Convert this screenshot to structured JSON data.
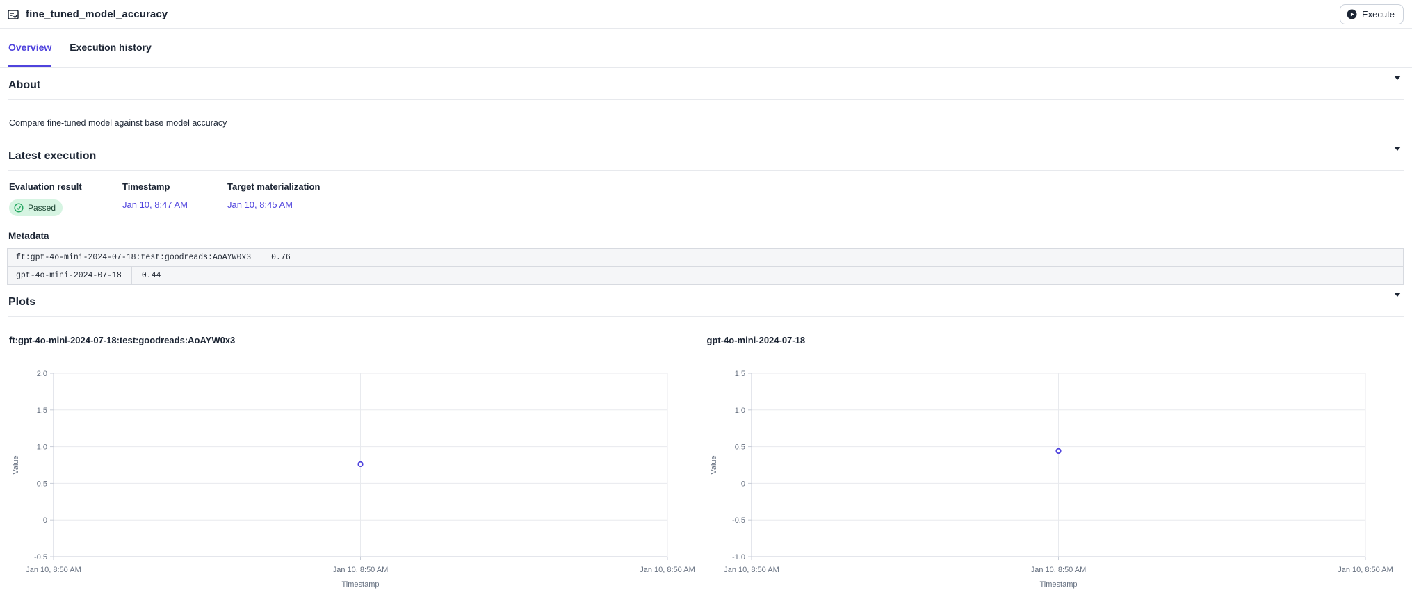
{
  "header": {
    "title": "fine_tuned_model_accuracy",
    "execute_label": "Execute"
  },
  "tabs": [
    {
      "label": "Overview",
      "active": true
    },
    {
      "label": "Execution history",
      "active": false
    }
  ],
  "sections": {
    "about": {
      "title": "About",
      "description": "Compare fine-tuned model against base model accuracy"
    },
    "latest_execution": {
      "title": "Latest execution",
      "columns": [
        "Evaluation result",
        "Timestamp",
        "Target materialization"
      ],
      "evaluation_result": "Passed",
      "timestamp": "Jan 10, 8:47 AM",
      "target_materialization": "Jan 10, 8:45 AM",
      "metadata": {
        "title": "Metadata",
        "rows": [
          {
            "key": "ft:gpt-4o-mini-2024-07-18:test:goodreads:AoAYW0x3",
            "value": "0.76"
          },
          {
            "key": "gpt-4o-mini-2024-07-18",
            "value": "0.44"
          }
        ]
      }
    },
    "plots": {
      "title": "Plots"
    }
  },
  "colors": {
    "accent": "#4f43dd",
    "green": "#1fa45c",
    "badge_bg": "#d6f4e2",
    "grid": "#e8eaee",
    "axis": "#c9ced8",
    "tick_text": "#667080"
  },
  "chart_data": [
    {
      "type": "scatter",
      "title": "ft:gpt-4o-mini-2024-07-18:test:goodreads:AoAYW0x3",
      "xlabel": "Timestamp",
      "ylabel": "Value",
      "ylim": [
        -0.5,
        2.0
      ],
      "y_ticks": [
        {
          "value": 2.0,
          "label": "2.0"
        },
        {
          "value": 1.5,
          "label": "1.5"
        },
        {
          "value": 1.0,
          "label": "1.0"
        },
        {
          "value": 0.5,
          "label": "0.5"
        },
        {
          "value": 0.0,
          "label": "0"
        },
        {
          "value": -0.5,
          "label": "-0.5"
        }
      ],
      "x_tick_labels": [
        "Jan 10, 8:50 AM",
        "Jan 10, 8:50 AM",
        "Jan 10, 8:50 AM"
      ],
      "grid": true,
      "points": [
        {
          "x_label": "Jan 10, 8:50 AM",
          "x_fraction": 0.5,
          "y": 0.76
        }
      ]
    },
    {
      "type": "scatter",
      "title": "gpt-4o-mini-2024-07-18",
      "xlabel": "Timestamp",
      "ylabel": "Value",
      "ylim": [
        -1.0,
        1.5
      ],
      "y_ticks": [
        {
          "value": 1.5,
          "label": "1.5"
        },
        {
          "value": 1.0,
          "label": "1.0"
        },
        {
          "value": 0.5,
          "label": "0.5"
        },
        {
          "value": 0.0,
          "label": "0"
        },
        {
          "value": -0.5,
          "label": "-0.5"
        },
        {
          "value": -1.0,
          "label": "-1.0"
        }
      ],
      "x_tick_labels": [
        "Jan 10, 8:50 AM",
        "Jan 10, 8:50 AM",
        "Jan 10, 8:50 AM"
      ],
      "grid": true,
      "points": [
        {
          "x_label": "Jan 10, 8:50 AM",
          "x_fraction": 0.5,
          "y": 0.44
        }
      ]
    }
  ]
}
